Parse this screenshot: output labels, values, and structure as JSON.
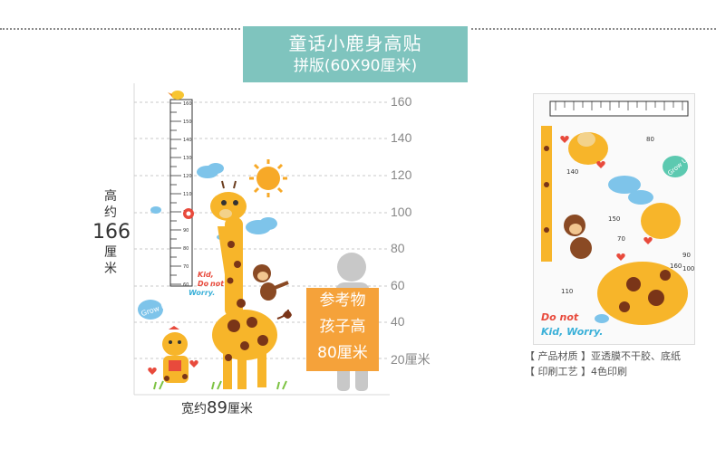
{
  "header": {
    "title_line1": "童话小鹿身高贴",
    "title_line2": "拼版(60X90厘米)",
    "bg_color": "#7fc4be"
  },
  "height_label": {
    "char_top": "高",
    "char_about": "约",
    "value": "166",
    "unit_1": "厘",
    "unit_2": "米"
  },
  "width_label": {
    "prefix": "宽约",
    "value": "89",
    "unit": "厘米"
  },
  "right_scale": {
    "labels": [
      "160",
      "140",
      "120",
      "100",
      "80",
      "60",
      "40",
      "20厘米"
    ]
  },
  "chart_scale": {
    "labels": [
      "160",
      "150",
      "140",
      "130",
      "120",
      "110",
      "100",
      "90",
      "80",
      "70",
      "60"
    ]
  },
  "reference_box": {
    "line1": "参考物",
    "line2": "孩子高",
    "line3": "80厘米",
    "color": "#f5a23a"
  },
  "decals": {
    "grow_up": "Grow Up!",
    "kid_line1": "Kid,",
    "kid_line2": "Do",
    "kid_line3": "not",
    "kid_line4": "Worry."
  },
  "panel": {
    "do_not": "Do  not",
    "kid_worry": "Kid, Worry.",
    "grow_up": "Grow Up!",
    "nums": [
      "80",
      "140",
      "150",
      "70",
      "110",
      "160",
      "90",
      "100"
    ]
  },
  "info": {
    "material_label": "【 产品材质 】",
    "material_value": "亚透膜不干胶、底纸",
    "print_label": "【 印刷工艺 】",
    "print_value": "4色印刷"
  }
}
